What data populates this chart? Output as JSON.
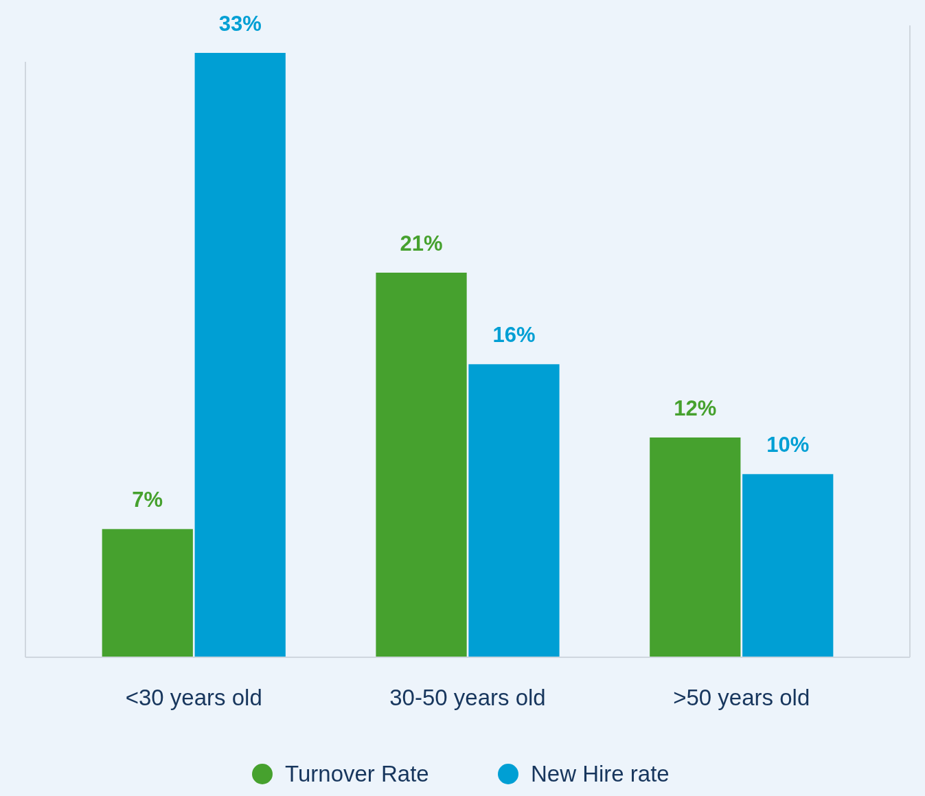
{
  "chart_data": {
    "type": "bar",
    "categories": [
      "<30 years old",
      "30-50 years old",
      ">50 years old"
    ],
    "series": [
      {
        "name": "Turnover Rate",
        "color": "#46a12e",
        "values": [
          7,
          21,
          12
        ],
        "value_labels": [
          "7%",
          "21%",
          "12%"
        ]
      },
      {
        "name": "New Hire rate",
        "color": "#009fd4",
        "values": [
          33,
          16,
          10
        ],
        "value_labels": [
          "33%",
          "16%",
          "10%"
        ]
      }
    ],
    "legend": "bottom",
    "grid": false
  }
}
